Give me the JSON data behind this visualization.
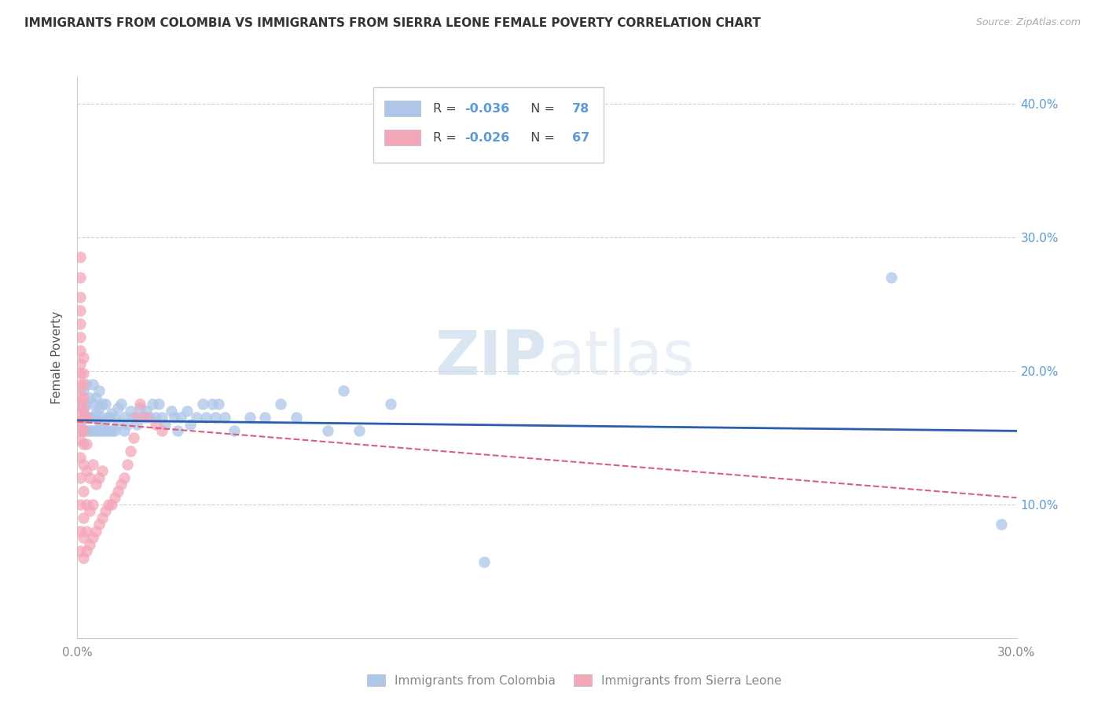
{
  "title": "IMMIGRANTS FROM COLOMBIA VS IMMIGRANTS FROM SIERRA LEONE FEMALE POVERTY CORRELATION CHART",
  "source": "Source: ZipAtlas.com",
  "ylabel": "Female Poverty",
  "xlabel_colombia": "Immigrants from Colombia",
  "xlabel_sierraleone": "Immigrants from Sierra Leone",
  "xlim": [
    0.0,
    0.3
  ],
  "ylim": [
    0.0,
    0.42
  ],
  "x_ticks": [
    0.0,
    0.05,
    0.1,
    0.15,
    0.2,
    0.25,
    0.3
  ],
  "x_tick_labels": [
    "0.0%",
    "",
    "",
    "",
    "",
    "",
    "30.0%"
  ],
  "y_ticks": [
    0.0,
    0.1,
    0.2,
    0.3,
    0.4
  ],
  "y_tick_labels": [
    "",
    "10.0%",
    "20.0%",
    "30.0%",
    "40.0%"
  ],
  "colombia_R": -0.036,
  "colombia_N": 78,
  "sierraleone_R": -0.026,
  "sierraleone_N": 67,
  "colombia_color": "#aec6e8",
  "sierraleone_color": "#f4a7b9",
  "colombia_line_color": "#2b5fad",
  "sierraleone_line_color": "#d9607a",
  "watermark_color": "#cddcee",
  "colombia_x": [
    0.001,
    0.001,
    0.002,
    0.002,
    0.002,
    0.003,
    0.003,
    0.003,
    0.003,
    0.004,
    0.004,
    0.004,
    0.005,
    0.005,
    0.005,
    0.005,
    0.006,
    0.006,
    0.006,
    0.007,
    0.007,
    0.007,
    0.007,
    0.008,
    0.008,
    0.008,
    0.009,
    0.009,
    0.009,
    0.01,
    0.01,
    0.011,
    0.011,
    0.012,
    0.012,
    0.013,
    0.013,
    0.014,
    0.015,
    0.015,
    0.016,
    0.017,
    0.018,
    0.019,
    0.02,
    0.021,
    0.022,
    0.023,
    0.024,
    0.025,
    0.026,
    0.027,
    0.028,
    0.03,
    0.031,
    0.032,
    0.033,
    0.035,
    0.036,
    0.038,
    0.04,
    0.041,
    0.043,
    0.044,
    0.045,
    0.047,
    0.05,
    0.055,
    0.06,
    0.065,
    0.07,
    0.08,
    0.085,
    0.09,
    0.1,
    0.13,
    0.26,
    0.295
  ],
  "colombia_y": [
    0.16,
    0.175,
    0.155,
    0.17,
    0.185,
    0.155,
    0.165,
    0.175,
    0.19,
    0.155,
    0.165,
    0.18,
    0.155,
    0.165,
    0.175,
    0.19,
    0.155,
    0.168,
    0.18,
    0.155,
    0.162,
    0.172,
    0.185,
    0.155,
    0.165,
    0.175,
    0.155,
    0.163,
    0.175,
    0.155,
    0.165,
    0.155,
    0.168,
    0.155,
    0.165,
    0.16,
    0.172,
    0.175,
    0.155,
    0.165,
    0.16,
    0.17,
    0.165,
    0.16,
    0.172,
    0.165,
    0.17,
    0.165,
    0.175,
    0.165,
    0.175,
    0.165,
    0.16,
    0.17,
    0.165,
    0.155,
    0.165,
    0.17,
    0.16,
    0.165,
    0.175,
    0.165,
    0.175,
    0.165,
    0.175,
    0.165,
    0.155,
    0.165,
    0.165,
    0.175,
    0.165,
    0.155,
    0.185,
    0.155,
    0.175,
    0.057,
    0.27,
    0.085
  ],
  "sierraleone_x": [
    0.001,
    0.001,
    0.001,
    0.001,
    0.001,
    0.001,
    0.001,
    0.001,
    0.001,
    0.001,
    0.001,
    0.001,
    0.001,
    0.001,
    0.001,
    0.001,
    0.001,
    0.001,
    0.001,
    0.001,
    0.001,
    0.002,
    0.002,
    0.002,
    0.002,
    0.002,
    0.002,
    0.002,
    0.002,
    0.002,
    0.002,
    0.002,
    0.002,
    0.002,
    0.003,
    0.003,
    0.003,
    0.003,
    0.003,
    0.003,
    0.004,
    0.004,
    0.004,
    0.005,
    0.005,
    0.005,
    0.006,
    0.006,
    0.007,
    0.007,
    0.008,
    0.008,
    0.009,
    0.01,
    0.011,
    0.012,
    0.013,
    0.014,
    0.015,
    0.016,
    0.017,
    0.018,
    0.019,
    0.02,
    0.022,
    0.025,
    0.027
  ],
  "sierraleone_y": [
    0.065,
    0.08,
    0.1,
    0.12,
    0.135,
    0.148,
    0.155,
    0.162,
    0.168,
    0.175,
    0.182,
    0.19,
    0.198,
    0.205,
    0.215,
    0.225,
    0.235,
    0.245,
    0.255,
    0.27,
    0.285,
    0.06,
    0.075,
    0.09,
    0.11,
    0.13,
    0.145,
    0.155,
    0.165,
    0.172,
    0.18,
    0.19,
    0.198,
    0.21,
    0.065,
    0.08,
    0.1,
    0.125,
    0.145,
    0.165,
    0.07,
    0.095,
    0.12,
    0.075,
    0.1,
    0.13,
    0.08,
    0.115,
    0.085,
    0.12,
    0.09,
    0.125,
    0.095,
    0.1,
    0.1,
    0.105,
    0.11,
    0.115,
    0.12,
    0.13,
    0.14,
    0.15,
    0.165,
    0.175,
    0.165,
    0.16,
    0.155
  ]
}
